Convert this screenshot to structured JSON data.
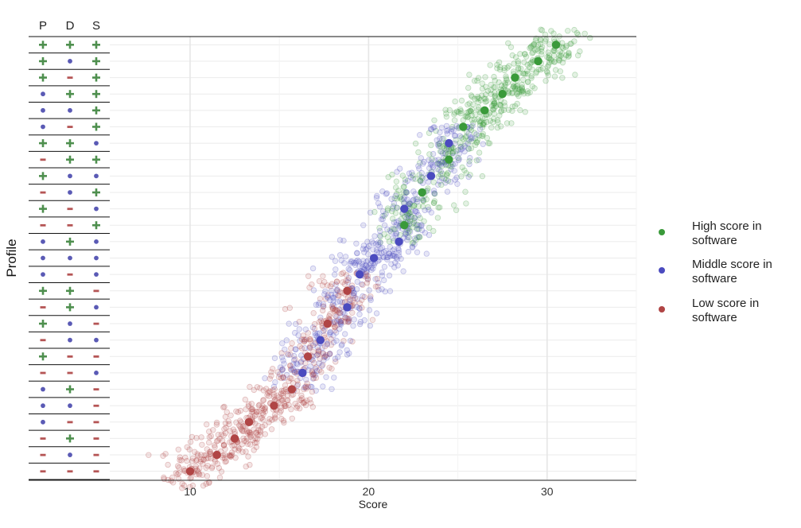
{
  "chart_data": {
    "type": "scatter",
    "title": "",
    "xlabel": "Score",
    "ylabel": "Profile",
    "xlim": [
      5.5,
      35
    ],
    "x_ticks": [
      10,
      20,
      30
    ],
    "grid": true,
    "legend_placement": "right",
    "profile_columns": [
      "P",
      "D",
      "S"
    ],
    "symbols": {
      "+": "+",
      "-": "-",
      "o": "•"
    },
    "symbol_colors": {
      "+": "#4e8f4e",
      "-": "#b55555",
      "o": "#5a5ab5"
    },
    "series": [
      {
        "key": "high",
        "name": "High score in software",
        "color": "#3a9a3a"
      },
      {
        "key": "mid",
        "name": "Middle score in software",
        "color": "#4b4bbf"
      },
      {
        "key": "low",
        "name": "Low score in software",
        "color": "#b04545"
      }
    ],
    "profiles": [
      {
        "P": "+",
        "D": "+",
        "S": "+",
        "group": "high",
        "mean": 30.5
      },
      {
        "P": "+",
        "D": "o",
        "S": "+",
        "group": "high",
        "mean": 29.5
      },
      {
        "P": "+",
        "D": "-",
        "S": "+",
        "group": "high",
        "mean": 28.2
      },
      {
        "P": "o",
        "D": "+",
        "S": "+",
        "group": "high",
        "mean": 27.5
      },
      {
        "P": "o",
        "D": "o",
        "S": "+",
        "group": "high",
        "mean": 26.5
      },
      {
        "P": "o",
        "D": "-",
        "S": "+",
        "group": "high",
        "mean": 25.3
      },
      {
        "P": "+",
        "D": "+",
        "S": "o",
        "group": "mid",
        "mean": 24.5
      },
      {
        "P": "-",
        "D": "+",
        "S": "+",
        "group": "high",
        "mean": 24.5
      },
      {
        "P": "+",
        "D": "o",
        "S": "o",
        "group": "mid",
        "mean": 23.5
      },
      {
        "P": "-",
        "D": "o",
        "S": "+",
        "group": "high",
        "mean": 23.0
      },
      {
        "P": "+",
        "D": "-",
        "S": "o",
        "group": "mid",
        "mean": 22.0
      },
      {
        "P": "-",
        "D": "-",
        "S": "+",
        "group": "high",
        "mean": 22.0
      },
      {
        "P": "o",
        "D": "+",
        "S": "o",
        "group": "mid",
        "mean": 21.7
      },
      {
        "P": "o",
        "D": "o",
        "S": "o",
        "group": "mid",
        "mean": 20.3
      },
      {
        "P": "o",
        "D": "-",
        "S": "o",
        "group": "mid",
        "mean": 19.5
      },
      {
        "P": "+",
        "D": "+",
        "S": "-",
        "group": "low",
        "mean": 18.8
      },
      {
        "P": "-",
        "D": "+",
        "S": "o",
        "group": "mid",
        "mean": 18.8
      },
      {
        "P": "+",
        "D": "o",
        "S": "-",
        "group": "low",
        "mean": 17.7
      },
      {
        "P": "-",
        "D": "o",
        "S": "o",
        "group": "mid",
        "mean": 17.3
      },
      {
        "P": "+",
        "D": "-",
        "S": "-",
        "group": "low",
        "mean": 16.6
      },
      {
        "P": "-",
        "D": "-",
        "S": "o",
        "group": "mid",
        "mean": 16.3
      },
      {
        "P": "o",
        "D": "+",
        "S": "-",
        "group": "low",
        "mean": 15.7
      },
      {
        "P": "o",
        "D": "o",
        "S": "-",
        "group": "low",
        "mean": 14.7
      },
      {
        "P": "o",
        "D": "-",
        "S": "-",
        "group": "low",
        "mean": 13.3
      },
      {
        "P": "-",
        "D": "+",
        "S": "-",
        "group": "low",
        "mean": 12.5
      },
      {
        "P": "-",
        "D": "o",
        "S": "-",
        "group": "low",
        "mean": 11.5
      },
      {
        "P": "-",
        "D": "-",
        "S": "-",
        "group": "low",
        "mean": 10.0
      }
    ]
  }
}
